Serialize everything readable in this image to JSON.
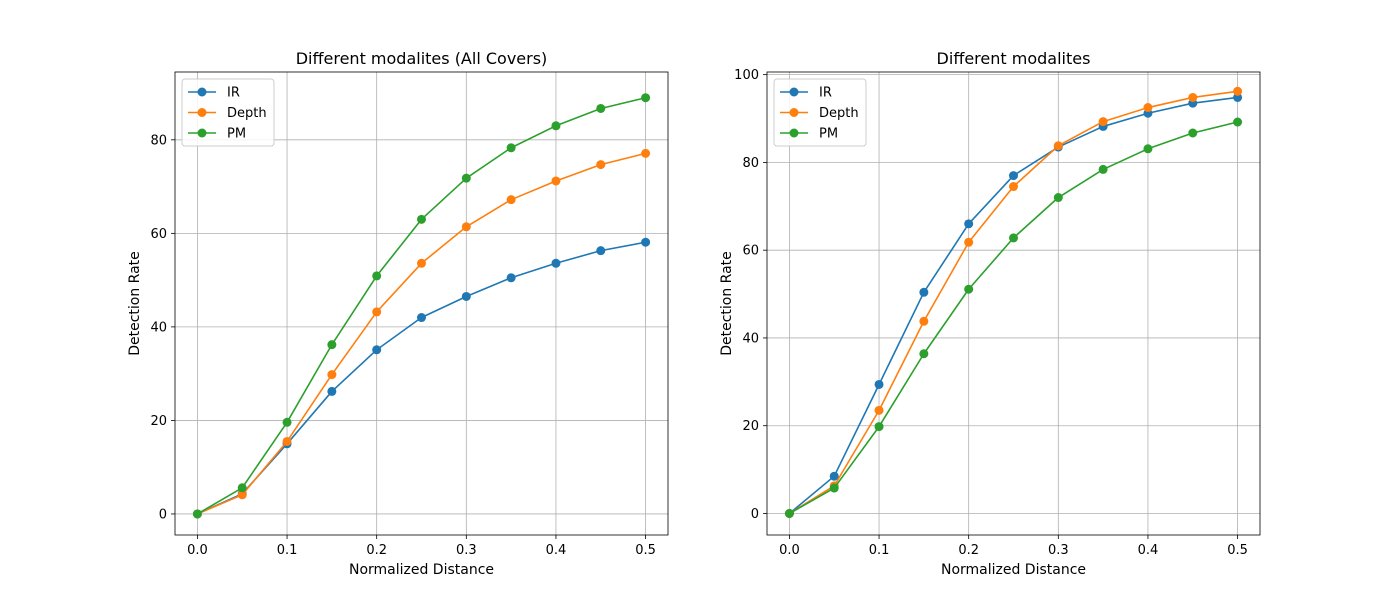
{
  "chart_data": [
    {
      "type": "line",
      "title": "Different modalites (All Covers)",
      "xlabel": "Normalized Distance",
      "ylabel": "Detection Rate",
      "x": [
        0.0,
        0.05,
        0.1,
        0.15,
        0.2,
        0.25,
        0.3,
        0.35,
        0.4,
        0.45,
        0.5
      ],
      "xlim": [
        -0.025,
        0.525
      ],
      "ylim": [
        -4.5,
        94.5
      ],
      "xticks": [
        0.0,
        0.1,
        0.2,
        0.3,
        0.4,
        0.5
      ],
      "xtick_labels": [
        "0.0",
        "0.1",
        "0.2",
        "0.3",
        "0.4",
        "0.5"
      ],
      "yticks": [
        0,
        20,
        40,
        60,
        80
      ],
      "ytick_labels": [
        "0",
        "20",
        "40",
        "60",
        "80"
      ],
      "grid": true,
      "legend_position": "upper-left",
      "series": [
        {
          "name": "IR",
          "color": "#1f77b4",
          "values": [
            0,
            4.3,
            15.0,
            26.2,
            35.1,
            42.0,
            46.5,
            50.5,
            53.6,
            56.3,
            58.1
          ]
        },
        {
          "name": "Depth",
          "color": "#ff7f0e",
          "values": [
            0,
            4.1,
            15.5,
            29.8,
            43.2,
            53.6,
            61.4,
            67.2,
            71.2,
            74.7,
            77.1
          ]
        },
        {
          "name": "PM",
          "color": "#2ca02c",
          "values": [
            0,
            5.6,
            19.6,
            36.2,
            50.9,
            63.0,
            71.8,
            78.3,
            83.0,
            86.7,
            89.0
          ]
        }
      ]
    },
    {
      "type": "line",
      "title": "Different modalites",
      "xlabel": "Normalized Distance",
      "ylabel": "Detection Rate",
      "x": [
        0.0,
        0.05,
        0.1,
        0.15,
        0.2,
        0.25,
        0.3,
        0.35,
        0.4,
        0.45,
        0.5
      ],
      "xlim": [
        -0.025,
        0.525
      ],
      "ylim": [
        -4.9,
        100.6
      ],
      "xticks": [
        0.0,
        0.1,
        0.2,
        0.3,
        0.4,
        0.5
      ],
      "xtick_labels": [
        "0.0",
        "0.1",
        "0.2",
        "0.3",
        "0.4",
        "0.5"
      ],
      "yticks": [
        0,
        20,
        40,
        60,
        80,
        100
      ],
      "ytick_labels": [
        "0",
        "20",
        "40",
        "60",
        "80",
        "100"
      ],
      "grid": true,
      "legend_position": "upper-left",
      "series": [
        {
          "name": "IR",
          "color": "#1f77b4",
          "values": [
            0,
            8.5,
            29.4,
            50.4,
            66.0,
            77.0,
            83.5,
            88.2,
            91.2,
            93.5,
            94.8
          ]
        },
        {
          "name": "Depth",
          "color": "#ff7f0e",
          "values": [
            0,
            6.3,
            23.5,
            43.8,
            61.8,
            74.5,
            83.8,
            89.3,
            92.5,
            94.8,
            96.2
          ]
        },
        {
          "name": "PM",
          "color": "#2ca02c",
          "values": [
            0,
            5.8,
            19.8,
            36.4,
            51.1,
            62.8,
            72.0,
            78.4,
            83.1,
            86.7,
            89.2
          ]
        }
      ]
    }
  ]
}
